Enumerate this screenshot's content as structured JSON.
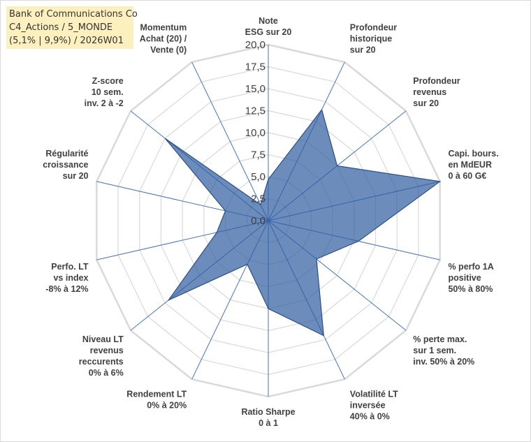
{
  "title": {
    "line1": "Bank of Communications Co",
    "line2": "C4_Actions / 5_MONDE",
    "line3": "(5,1% | 9,9%) / 2026W01"
  },
  "colors": {
    "fill": "#2e5c9e",
    "outline": "#2b4f86",
    "grid": "#d9d9d9",
    "spoke": "#4472c4"
  },
  "chart_data": {
    "type": "radar",
    "rmin": 0,
    "rmax": 20,
    "ticks": [
      "0,0",
      "2,5",
      "5,0",
      "7,5",
      "10,0",
      "12,5",
      "15,0",
      "17,5",
      "20,0"
    ],
    "grid": true,
    "legend": "none",
    "axes": [
      {
        "label": [
          "Note",
          "ESG sur 20"
        ],
        "value": 4.7
      },
      {
        "label": [
          "Profondeur",
          "historique",
          "sur 20"
        ],
        "value": 14
      },
      {
        "label": [
          "Profondeur",
          "revenus",
          "sur 20"
        ],
        "value": 10
      },
      {
        "label": [
          "Capi. bours.",
          "en MdEUR",
          "0 à 60 G€"
        ],
        "value": 20
      },
      {
        "label": [
          "% perfo 1A",
          "positive",
          "50% à 80%"
        ],
        "value": 10.5
      },
      {
        "label": [
          "% perte max.",
          "sur 1 sem.",
          "inv. 50% à 20%"
        ],
        "value": 7
      },
      {
        "label": [
          "Volatilité LT",
          "inversée",
          "40% à 0%"
        ],
        "value": 14.5
      },
      {
        "label": [
          "Ratio Sharpe",
          "0 à 1"
        ],
        "value": 10
      },
      {
        "label": [
          "Rendement LT",
          "0% à 20%"
        ],
        "value": 5.5
      },
      {
        "label": [
          "Niveau LT",
          "revenus",
          "reccurents",
          "0% à 6%"
        ],
        "value": 14.5
      },
      {
        "label": [
          "Perfo. LT",
          "vs index",
          "-8% à 12%"
        ],
        "value": 6
      },
      {
        "label": [
          "Régularité",
          "croissance",
          "sur 20"
        ],
        "value": 5
      },
      {
        "label": [
          "Z-score",
          "10 sem.",
          "inv. 2 à -2"
        ],
        "value": 15
      },
      {
        "label": [
          "Momentum",
          "Achat (20) /",
          "Vente (0)"
        ],
        "value": 2
      }
    ]
  }
}
